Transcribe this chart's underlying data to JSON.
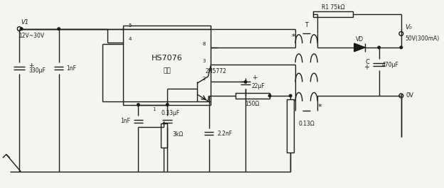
{
  "bg_color": "#f5f5f0",
  "line_color": "#1a1a1a",
  "line_width": 1.0,
  "fig_width": 6.24,
  "fig_height": 2.65,
  "dpi": 100,
  "labels": {
    "V1": "V1",
    "input_voltage": "12V~30V",
    "C1": "330μF",
    "C2": "1nF",
    "C3": "1nF",
    "C4": "0.33μF",
    "C5": "22μF",
    "C6": "2.2nF",
    "C7": "470μF",
    "R1_label": "R1 75kΩ",
    "R2": "3kΩ",
    "R3": "150Ω",
    "R4": "0.13Ω",
    "IC": "HS7076",
    "shell": "外壳",
    "Q1": "2N5772",
    "VD": "VD",
    "T_label": "T",
    "Vo": "V₀",
    "output_voltage": "50V(300mA)",
    "GND": "0V",
    "pin8": "8",
    "pin5": "5",
    "pin4": "4",
    "pin3": "3",
    "pin2": "2",
    "pin1": "1",
    "C_label": "C",
    "plus": "+"
  }
}
